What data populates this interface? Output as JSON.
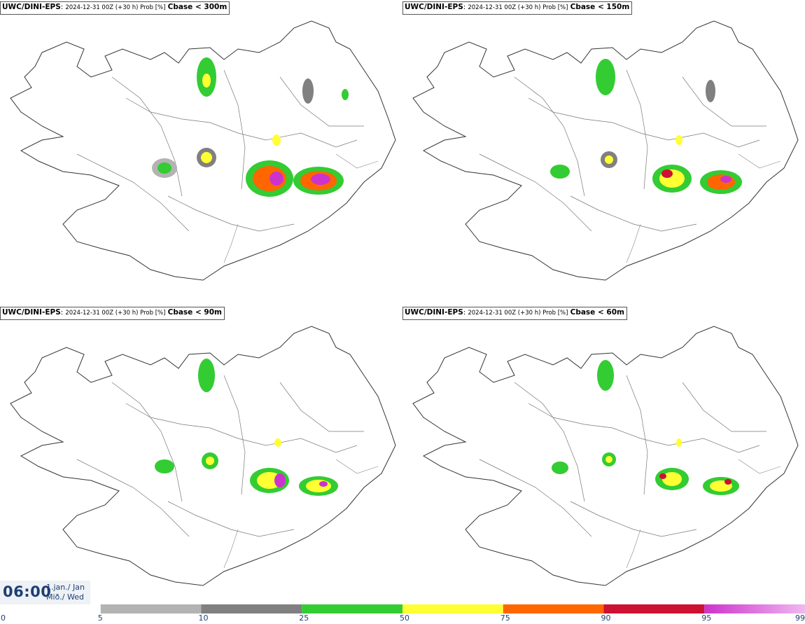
{
  "panels": [
    {
      "model": "UWC/DINI-EPS",
      "meta": "2024-12-31 00Z (+30 h) Prob [%]",
      "variable": "Cbase < 300m"
    },
    {
      "model": "UWC/DINI-EPS",
      "meta": "2024-12-31 00Z (+30 h) Prob [%]",
      "variable": "Cbase < 150m"
    },
    {
      "model": "UWC/DINI-EPS",
      "meta": "2024-12-31 00Z (+30 h) Prob [%]",
      "variable": "Cbase < 90m"
    },
    {
      "model": "UWC/DINI-EPS",
      "meta": "2024-12-31 00Z (+30 h) Prob [%]",
      "variable": "Cbase < 60m"
    }
  ],
  "time": {
    "clock": "06:00",
    "date_line1": "1.jan./ Jan",
    "date_line2": "Mið./ Wed"
  },
  "legend": {
    "ticks": [
      "0",
      "5",
      "10",
      "25",
      "50",
      "75",
      "90",
      "95",
      "99"
    ],
    "colors": [
      "#ffffff",
      "#b3b3b3",
      "#808080",
      "#33cc33",
      "#ffff33",
      "#ff6600",
      "#cc1133",
      "#cc33cc",
      "#f0b8f0"
    ]
  }
}
